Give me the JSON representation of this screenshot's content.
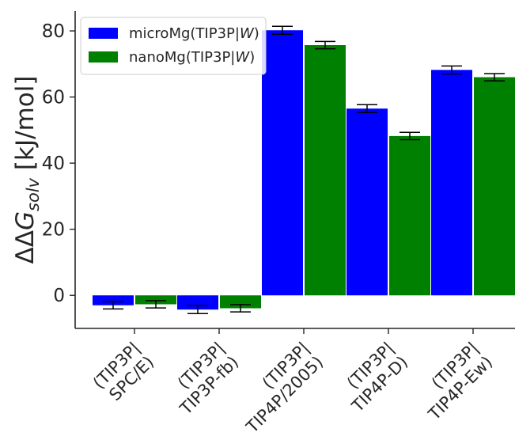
{
  "chart_data": {
    "type": "bar",
    "categories": [
      [
        "(TIP3P|",
        "SPC/E)"
      ],
      [
        "(TIP3P|",
        "TIP3P-fb)"
      ],
      [
        "(TIP3P|",
        "TIP4P/2005)"
      ],
      [
        "(TIP3P|",
        "TIP4P-D)"
      ],
      [
        "(TIP3P|",
        "TIP4P-Ew)"
      ]
    ],
    "series": [
      {
        "name": "microMg(TIP3P|W)",
        "name_parts": [
          "microMg(TIP3P|",
          "W",
          ")"
        ],
        "color": "#0000ff",
        "values": [
          -3.0,
          -4.3,
          80.2,
          56.5,
          68.2
        ],
        "errors": [
          1.1,
          1.2,
          1.2,
          1.2,
          1.2
        ]
      },
      {
        "name": "nanoMg(TIP3P|W)",
        "name_parts": [
          "nanoMg(TIP3P|",
          "W",
          ")"
        ],
        "color": "#008000",
        "values": [
          -2.7,
          -3.9,
          75.7,
          48.2,
          66.0
        ],
        "errors": [
          1.1,
          1.1,
          1.1,
          1.1,
          1.1
        ]
      }
    ],
    "ylabel": "ΔΔG_solv [kJ/mol]",
    "ylabel_parts": {
      "main": "ΔΔG",
      "sub": "solv",
      "unit": " [kJ/mol]"
    },
    "yticks": [
      0,
      20,
      40,
      60,
      80
    ],
    "ylim": [
      -10,
      86
    ],
    "xlabel": "",
    "grid": false,
    "legend_position": "top-left"
  }
}
